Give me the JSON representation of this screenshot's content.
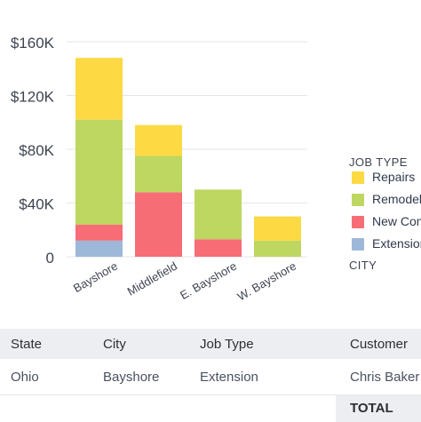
{
  "chart_data": {
    "type": "bar",
    "stacked": true,
    "categories": [
      "Bayshore",
      "Middlefield",
      "E. Bayshore",
      "W. Bayshore"
    ],
    "series": [
      {
        "name": "Extension",
        "color": "#9db8d9",
        "values": [
          12000,
          0,
          0,
          0
        ]
      },
      {
        "name": "New Construction",
        "color": "#f66d76",
        "values": [
          12000,
          48000,
          13000,
          0
        ]
      },
      {
        "name": "Remodel",
        "color": "#bdd760",
        "values": [
          78000,
          27000,
          37000,
          12000
        ]
      },
      {
        "name": "Repairs",
        "color": "#fdd943",
        "values": [
          46000,
          23000,
          0,
          18000
        ]
      }
    ],
    "yticks": [
      "0",
      "$40K",
      "$80K",
      "$120K",
      "$160K"
    ],
    "ylim": [
      0,
      160000
    ],
    "grid": true
  },
  "legend": {
    "title": "JOB TYPE",
    "items": [
      {
        "label": "Repairs",
        "color": "#fdd943"
      },
      {
        "label": "Remodel",
        "color": "#bdd760"
      },
      {
        "label": "New Construction",
        "color": "#f66d76"
      },
      {
        "label": "Extension",
        "color": "#9db8d9"
      }
    ],
    "title2": "CITY"
  },
  "table": {
    "headers": [
      "State",
      "City",
      "Job Type",
      "Customer"
    ],
    "row": [
      "Ohio",
      "Bayshore",
      "Extension",
      "Chris Baker"
    ],
    "total_label": "TOTAL"
  }
}
